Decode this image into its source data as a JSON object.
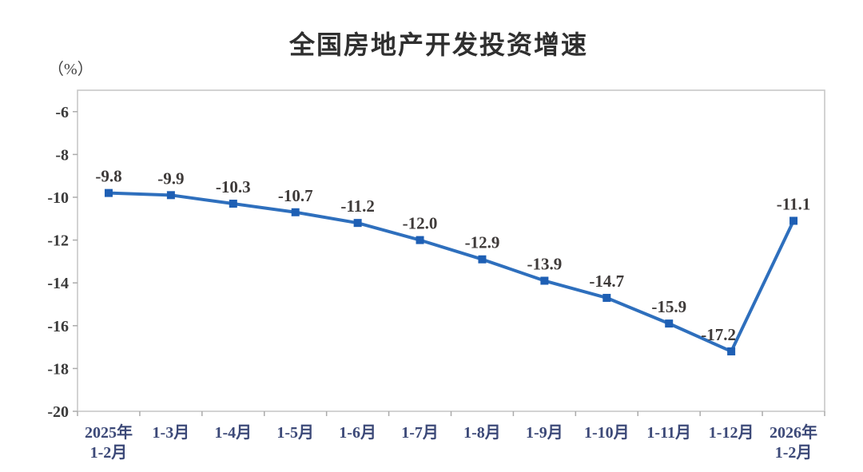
{
  "chart_data": {
    "type": "line",
    "title": "全国房地产开发投资增速",
    "unit_label": "（%）",
    "categories": [
      "2025年\n1-2月",
      "1-3月",
      "1-4月",
      "1-5月",
      "1-6月",
      "1-7月",
      "1-8月",
      "1-9月",
      "1-10月",
      "1-11月",
      "1-12月",
      "2026年\n1-2月"
    ],
    "values": [
      -9.8,
      -9.9,
      -10.3,
      -10.7,
      -11.2,
      -12.0,
      -12.9,
      -13.9,
      -14.7,
      -15.9,
      -17.2,
      -11.1
    ],
    "data_labels": [
      "-9.8",
      "-9.9",
      "-10.3",
      "-10.7",
      "-11.2",
      "-12.0",
      "-12.9",
      "-13.9",
      "-14.7",
      "-15.9",
      "-17.2",
      "-11.1"
    ],
    "label_dx": [
      0,
      0,
      0,
      0,
      0,
      0,
      0,
      0,
      0,
      0,
      -16,
      0
    ],
    "ylim": [
      -20,
      -5
    ],
    "yticks": [
      -6,
      -8,
      -10,
      -12,
      -14,
      -16,
      -18,
      -20
    ],
    "grid": false,
    "legend": "none",
    "marker_shape": "square",
    "colors": {
      "line": "#2E6FBD",
      "marker": "#1E5FB4",
      "axis_border": "#C8C8C8",
      "tick": "#ABABAB",
      "data_label": "#3E3A39",
      "x_label": "#3C4978",
      "y_label": "#3A3A3A",
      "title": "#2F2F2F"
    }
  }
}
